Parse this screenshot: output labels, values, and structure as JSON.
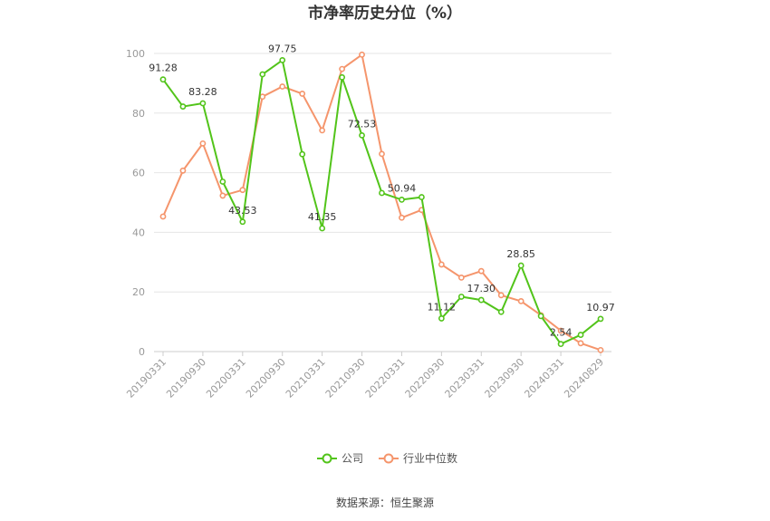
{
  "chart_data": {
    "type": "line",
    "title": "市净率历史分位（%）",
    "xlabel": "",
    "ylabel": "",
    "ylim": [
      0,
      100
    ],
    "yticks": [
      0,
      20,
      40,
      60,
      80,
      100
    ],
    "grid": true,
    "legend_position": "bottom",
    "categories": [
      "20190331",
      "20190630",
      "20190930",
      "20191231",
      "20200331",
      "20200630",
      "20200930",
      "20201231",
      "20210331",
      "20210630",
      "20210930",
      "20211231",
      "20220331",
      "20220630",
      "20220930",
      "20221231",
      "20230331",
      "20230630",
      "20230930",
      "20231231",
      "20240331",
      "20240630",
      "20240829"
    ],
    "tick_labels": [
      "20190331",
      "20190930",
      "20200331",
      "20200930",
      "20210331",
      "20210930",
      "20220331",
      "20220930",
      "20230331",
      "20230930",
      "20240331",
      "20240829"
    ],
    "series": [
      {
        "name": "公司",
        "color": "#52c41a",
        "values": [
          91.28,
          82.2,
          83.28,
          57.0,
          43.53,
          93.0,
          97.75,
          66.2,
          41.35,
          92.0,
          72.53,
          53.2,
          50.94,
          51.8,
          11.12,
          18.4,
          17.3,
          13.3,
          28.85,
          11.9,
          2.54,
          5.6,
          10.97
        ],
        "labels": {
          "0": "91.28",
          "2": "83.28",
          "4": "43.53",
          "6": "97.75",
          "8": "41.35",
          "10": "72.53",
          "12": "50.94",
          "14": "11.12",
          "16": "17.30",
          "18": "28.85",
          "20": "2.54",
          "22": "10.97"
        }
      },
      {
        "name": "行业中位数",
        "color": "#f5956c",
        "values": [
          45.3,
          60.7,
          69.8,
          52.3,
          54.2,
          85.5,
          88.9,
          86.5,
          74.2,
          94.8,
          99.6,
          66.3,
          44.9,
          47.5,
          29.2,
          24.8,
          27.0,
          18.9,
          16.9,
          12.2,
          7.0,
          2.8,
          0.5
        ]
      }
    ]
  },
  "source": "数据来源：恒生聚源"
}
